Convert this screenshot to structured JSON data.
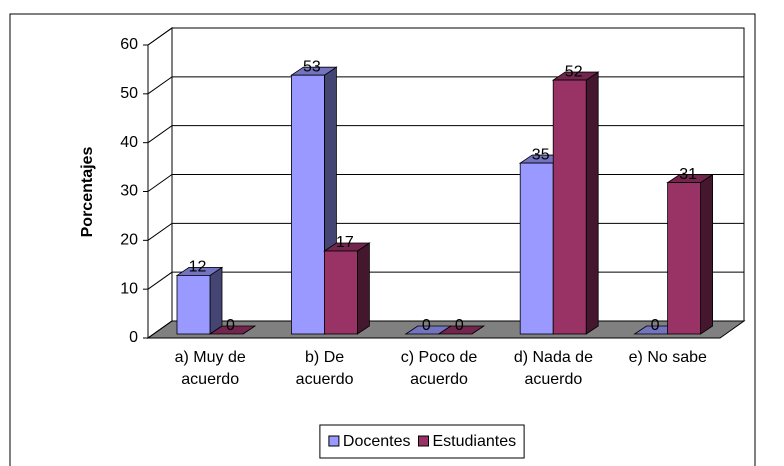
{
  "chart_data": {
    "type": "bar3d",
    "ylabel": "Porcentajes",
    "categories": [
      [
        "a) Muy de",
        "acuerdo"
      ],
      [
        "b) De",
        "acuerdo"
      ],
      [
        "c) Poco de",
        "acuerdo"
      ],
      [
        "d) Nada de",
        "acuerdo"
      ],
      [
        "e) No sabe"
      ]
    ],
    "series": [
      {
        "name": "Docentes",
        "color": "#9999ff",
        "values": [
          12,
          53,
          0,
          35,
          0
        ]
      },
      {
        "name": "Estudiantes",
        "color": "#993366",
        "values": [
          0,
          17,
          0,
          52,
          31
        ]
      }
    ],
    "ylim": [
      0,
      60
    ],
    "yticks": [
      0,
      10,
      20,
      30,
      40,
      50,
      60
    ],
    "grid": true,
    "legend": "bottom"
  }
}
